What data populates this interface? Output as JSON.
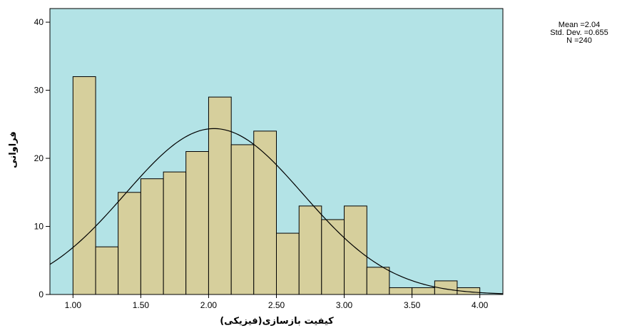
{
  "chart_data": {
    "type": "bar",
    "subtype": "histogram-with-normal-curve",
    "title": "",
    "xlabel": "کیفیت بازسازی(فیزیکی)",
    "ylabel": "فراوانی",
    "bin_width": 0.1667,
    "bins": [
      {
        "start": 1.0,
        "end": 1.167,
        "count": 32
      },
      {
        "start": 1.167,
        "end": 1.333,
        "count": 7
      },
      {
        "start": 1.333,
        "end": 1.5,
        "count": 15
      },
      {
        "start": 1.5,
        "end": 1.667,
        "count": 17
      },
      {
        "start": 1.667,
        "end": 1.833,
        "count": 18
      },
      {
        "start": 1.833,
        "end": 2.0,
        "count": 21
      },
      {
        "start": 2.0,
        "end": 2.167,
        "count": 29
      },
      {
        "start": 2.167,
        "end": 2.333,
        "count": 22
      },
      {
        "start": 2.333,
        "end": 2.5,
        "count": 24
      },
      {
        "start": 2.5,
        "end": 2.667,
        "count": 9
      },
      {
        "start": 2.667,
        "end": 2.833,
        "count": 13
      },
      {
        "start": 2.833,
        "end": 3.0,
        "count": 11
      },
      {
        "start": 3.0,
        "end": 3.167,
        "count": 13
      },
      {
        "start": 3.167,
        "end": 3.333,
        "count": 4
      },
      {
        "start": 3.333,
        "end": 3.5,
        "count": 1
      },
      {
        "start": 3.5,
        "end": 3.667,
        "count": 1
      },
      {
        "start": 3.667,
        "end": 3.833,
        "count": 2
      },
      {
        "start": 3.833,
        "end": 4.0,
        "count": 1
      }
    ],
    "xlim": [
      0.83,
      4.17
    ],
    "ylim": [
      0,
      42
    ],
    "x_ticks": [
      "1.00",
      "1.50",
      "2.00",
      "2.50",
      "3.00",
      "3.50",
      "4.00"
    ],
    "y_ticks": [
      "0",
      "10",
      "20",
      "30",
      "40"
    ],
    "normal_curve": {
      "mean": 2.04,
      "sd": 0.655,
      "n": 240
    },
    "legend_position": "top-right",
    "grid": false,
    "colors": {
      "plot_background": "#b3e3e6",
      "bar_fill": "#d6cf9c",
      "bar_stroke": "#000000",
      "curve": "#000000"
    }
  },
  "stats": {
    "mean": "Mean =2.04",
    "std_dev": "Std. Dev. =0.655",
    "n": "N =240"
  }
}
